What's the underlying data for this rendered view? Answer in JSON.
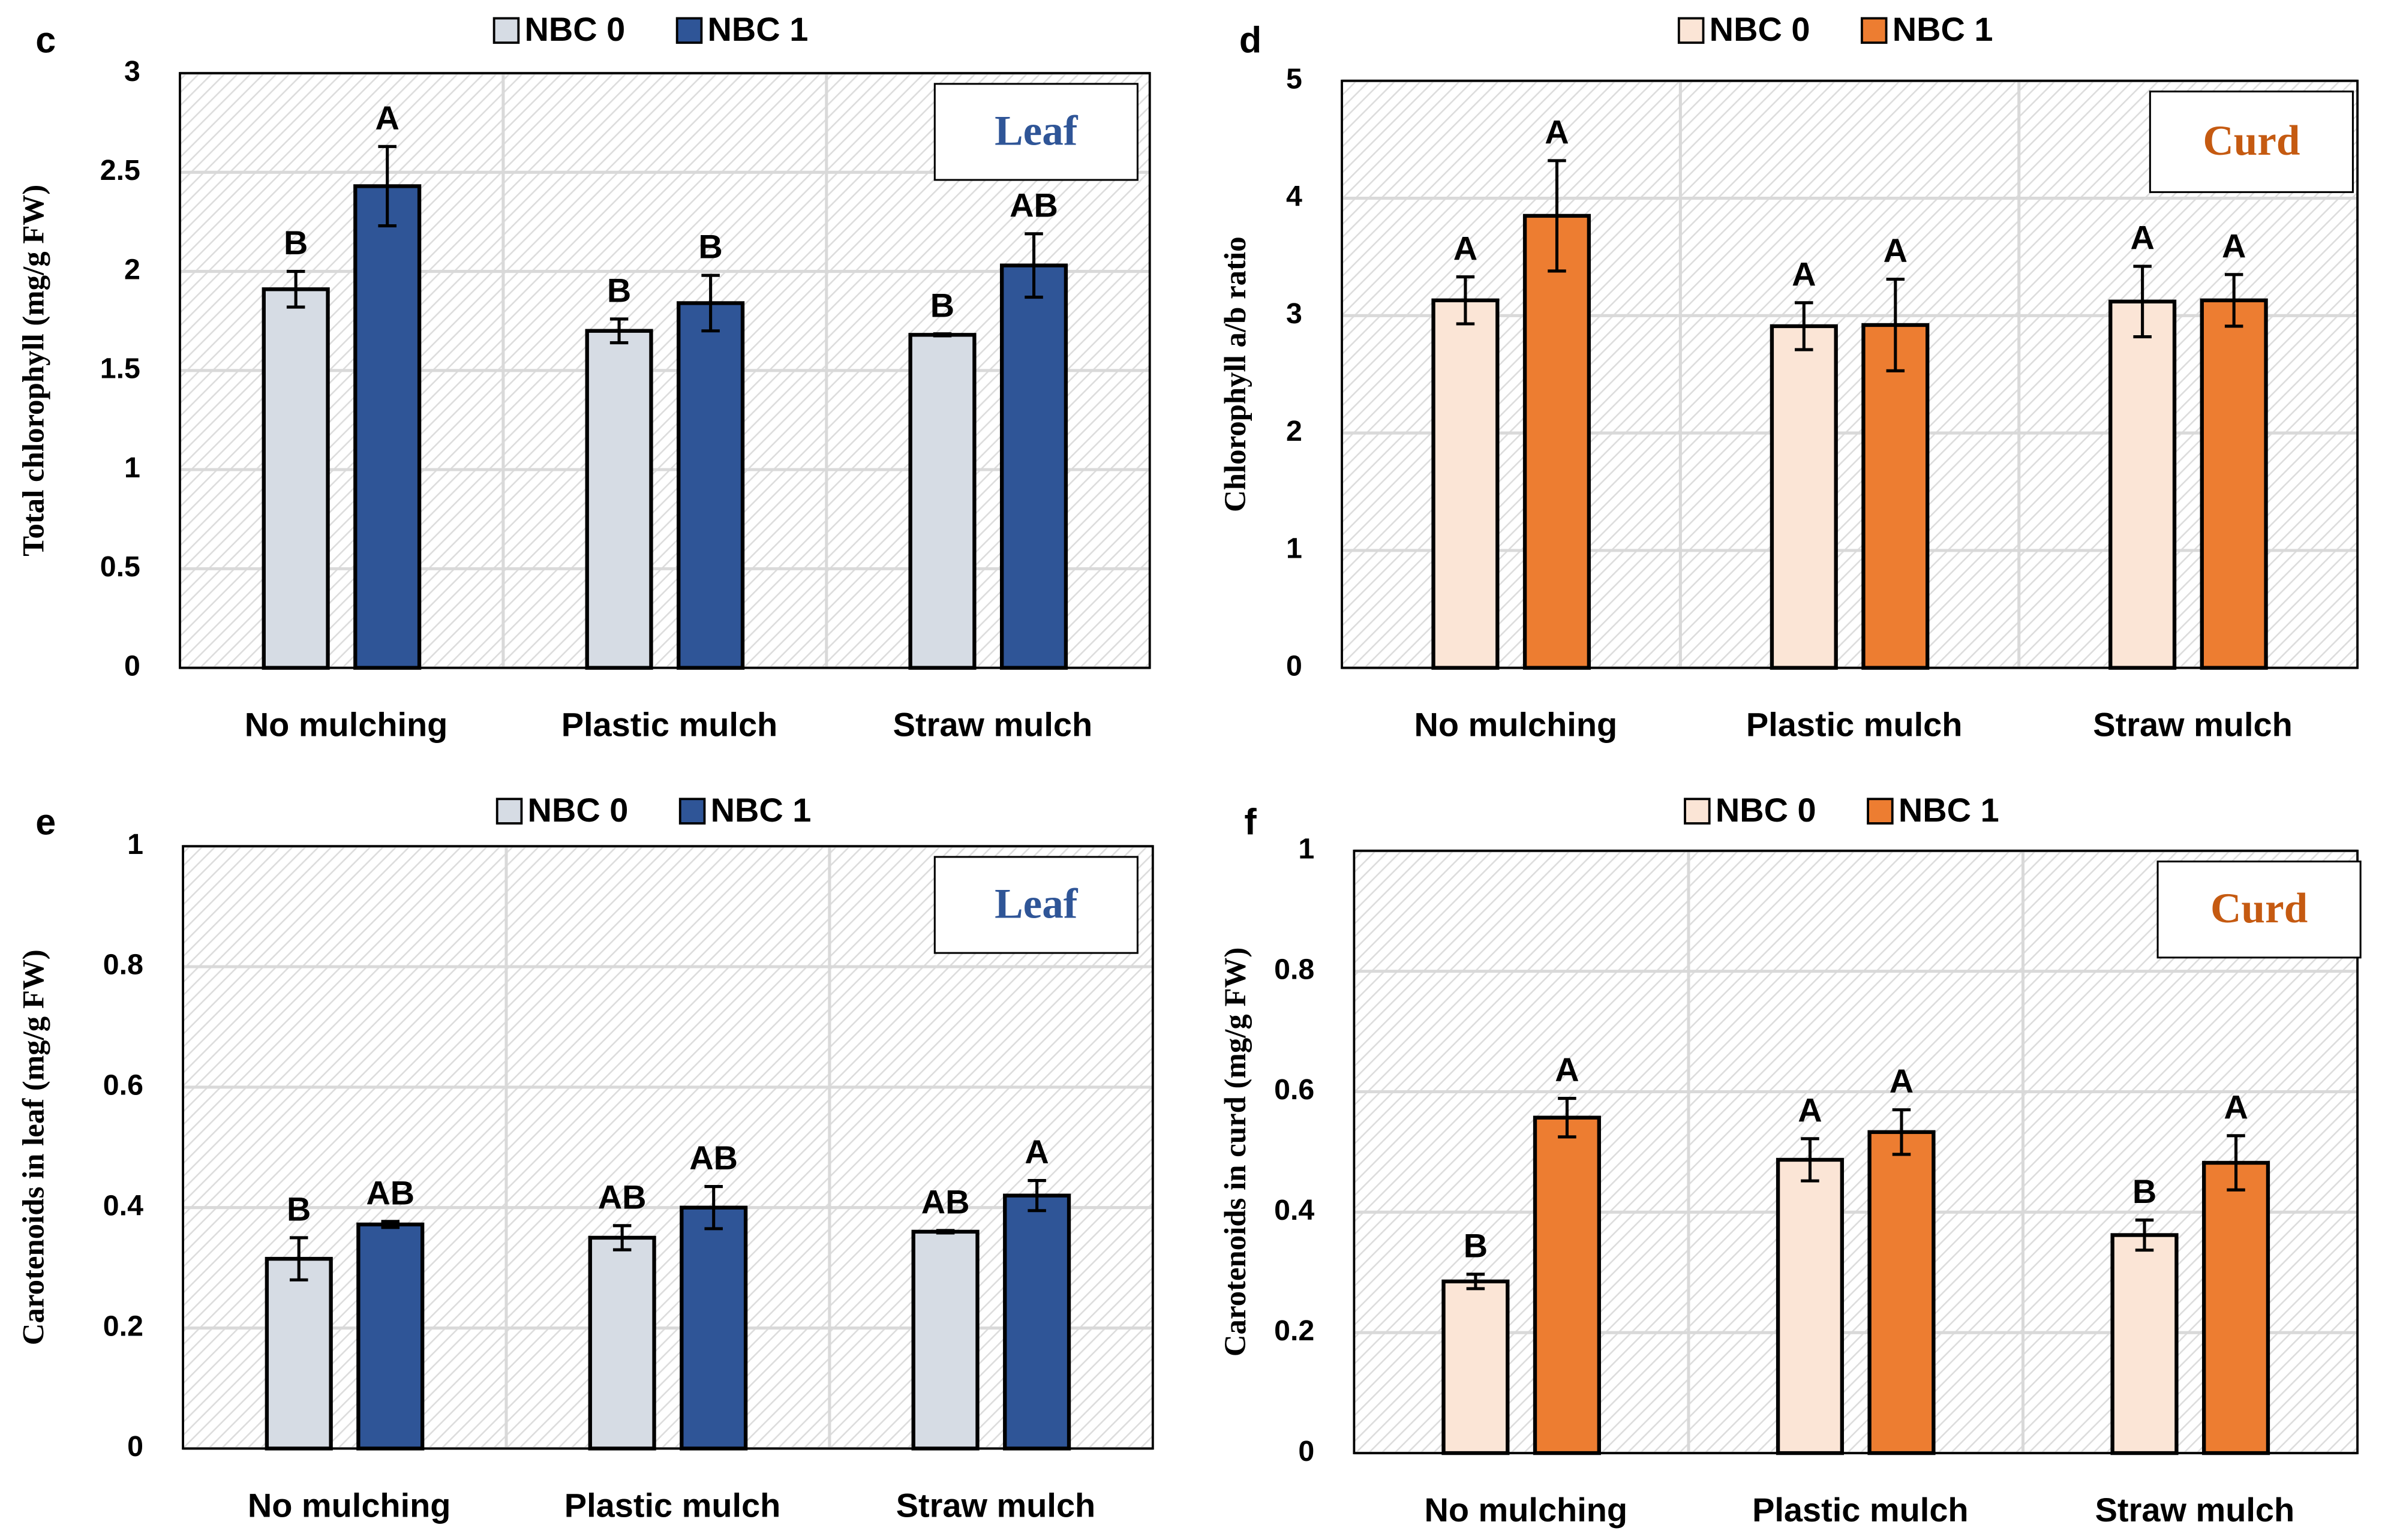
{
  "chart_data": [
    {
      "type": "bar",
      "panel_label": "c",
      "ylabel": "Total chlorophyll (mg/g FW)",
      "box_label": "Leaf",
      "box_color": "#2f5597",
      "categories": [
        "No mulching",
        "Plastic mulch",
        "Straw mulch"
      ],
      "series": [
        {
          "name": "NBC 0",
          "color": "#d6dce4",
          "values": [
            1.91,
            1.7,
            1.68
          ],
          "errors": [
            0.09,
            0.06,
            0.005
          ],
          "letters": [
            "B",
            "B",
            "B"
          ]
        },
        {
          "name": "NBC 1",
          "color": "#2f5597",
          "values": [
            2.43,
            1.84,
            2.03
          ],
          "errors": [
            0.2,
            0.14,
            0.16
          ],
          "letters": [
            "A",
            "B",
            "AB"
          ]
        }
      ],
      "ylim": [
        0,
        3
      ],
      "yticks": [
        0,
        0.5,
        1,
        1.5,
        2,
        2.5,
        3
      ],
      "grid": true
    },
    {
      "type": "bar",
      "panel_label": "d",
      "ylabel": "Chlorophyll a/b ratio",
      "box_label": "Curd",
      "box_color": "#c55a11",
      "categories": [
        "No mulching",
        "Plastic mulch",
        "Straw mulch"
      ],
      "series": [
        {
          "name": "NBC 0",
          "color": "#fbe5d6",
          "values": [
            3.13,
            2.91,
            3.12
          ],
          "errors": [
            0.2,
            0.2,
            0.3
          ],
          "letters": [
            "A",
            "A",
            "A"
          ]
        },
        {
          "name": "NBC 1",
          "color": "#ed7d31",
          "values": [
            3.85,
            2.92,
            3.13
          ],
          "errors": [
            0.47,
            0.39,
            0.22
          ],
          "letters": [
            "A",
            "A",
            "A"
          ]
        }
      ],
      "ylim": [
        0,
        5
      ],
      "yticks": [
        0,
        1,
        2,
        3,
        4,
        5
      ],
      "grid": true
    },
    {
      "type": "bar",
      "panel_label": "e",
      "ylabel": "Carotenoids in leaf (mg/g FW)",
      "box_label": "Leaf",
      "box_color": "#2f5597",
      "categories": [
        "No mulching",
        "Plastic mulch",
        "Straw mulch"
      ],
      "series": [
        {
          "name": "NBC 0",
          "color": "#d6dce4",
          "values": [
            0.315,
            0.35,
            0.36
          ],
          "errors": [
            0.035,
            0.02,
            0.002
          ],
          "letters": [
            "B",
            "AB",
            "AB"
          ]
        },
        {
          "name": "NBC 1",
          "color": "#2f5597",
          "values": [
            0.372,
            0.4,
            0.42
          ],
          "errors": [
            0.005,
            0.035,
            0.025
          ],
          "letters": [
            "AB",
            "AB",
            "A"
          ]
        }
      ],
      "ylim": [
        0,
        1
      ],
      "yticks": [
        0,
        0.2,
        0.4,
        0.6,
        0.8,
        1
      ],
      "grid": true
    },
    {
      "type": "bar",
      "panel_label": "f",
      "ylabel": "Carotenoids in curd (mg/g FW)",
      "box_label": "Curd",
      "box_color": "#c55a11",
      "categories": [
        "No mulching",
        "Plastic mulch",
        "Straw mulch"
      ],
      "series": [
        {
          "name": "NBC 0",
          "color": "#fbe5d6",
          "values": [
            0.285,
            0.487,
            0.362
          ],
          "errors": [
            0.012,
            0.035,
            0.025
          ],
          "letters": [
            "B",
            "A",
            "B"
          ]
        },
        {
          "name": "NBC 1",
          "color": "#ed7d31",
          "values": [
            0.557,
            0.533,
            0.482
          ],
          "errors": [
            0.032,
            0.037,
            0.045
          ],
          "letters": [
            "A",
            "A",
            "A"
          ]
        }
      ],
      "ylim": [
        0,
        1
      ],
      "yticks": [
        0,
        0.2,
        0.4,
        0.6,
        0.8,
        1
      ],
      "grid": true
    }
  ]
}
